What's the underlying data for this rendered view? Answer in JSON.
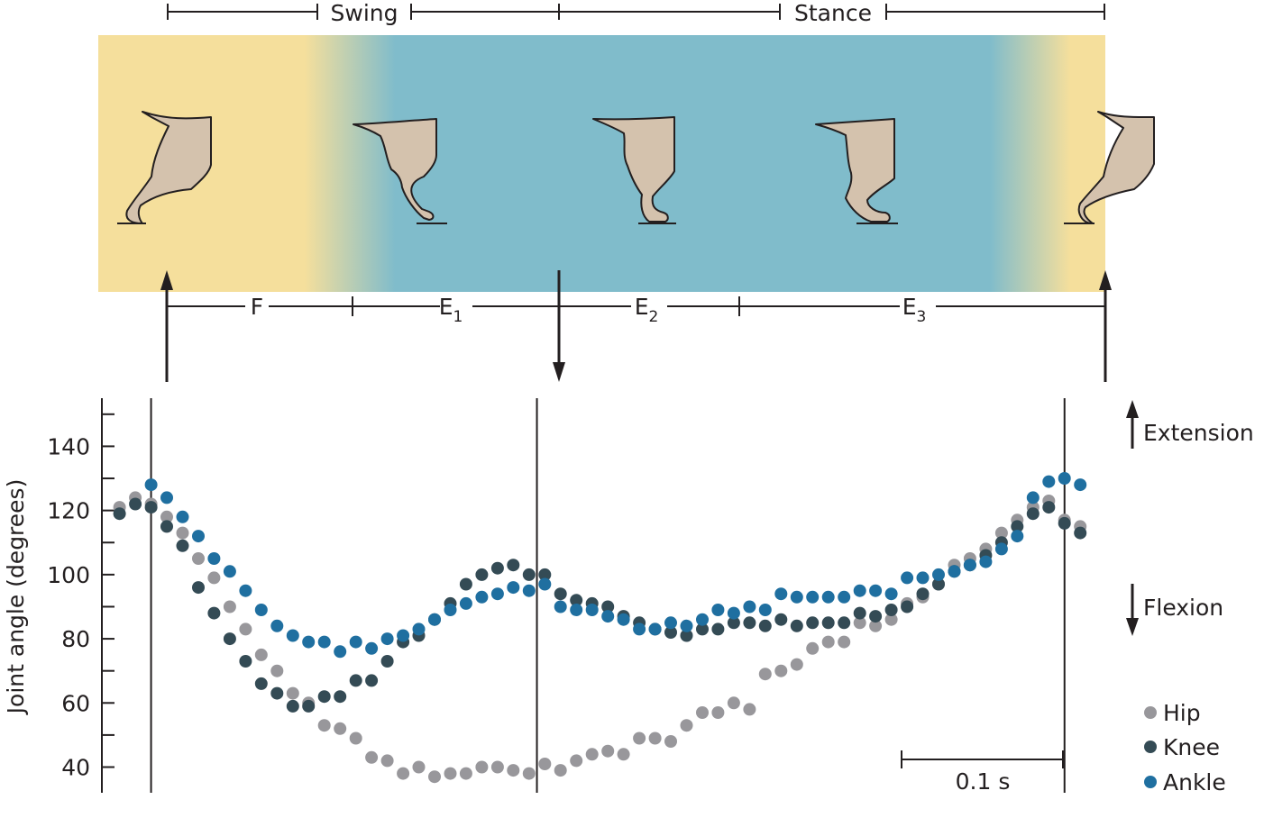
{
  "phase_header": {
    "swing_label": "Swing",
    "stance_label": "Stance"
  },
  "phase_segments": {
    "f_label": "F",
    "e1_label": "E",
    "e1_sub": "1",
    "e2_label": "E",
    "e2_sub": "2",
    "e3_label": "E",
    "e3_sub": "3"
  },
  "direction_labels": {
    "extension": "Extension",
    "flexion": "Flexion"
  },
  "scale_bar": {
    "label": "0.1 s"
  },
  "colors": {
    "swing_band": "#f5df9c",
    "stance_band": "#80bccb",
    "leg_fill": "#d4c2ad",
    "hip": "#98979b",
    "knee": "#344b55",
    "ankle": "#1f6fa0"
  },
  "chart_data": {
    "type": "scatter",
    "title": "",
    "xlabel": "",
    "ylabel": "Joint angle (degrees)",
    "ylim": [
      32,
      155
    ],
    "yticks": [
      40,
      60,
      80,
      100,
      120,
      140
    ],
    "x_unit": "s",
    "xlim": [
      -0.0215,
      0.6185
    ],
    "event_lines_s": [
      0.0,
      0.245,
      0.58
    ],
    "legend": {
      "placement": "bottom-right",
      "entries": [
        "Hip",
        "Knee",
        "Ankle"
      ]
    },
    "series": [
      {
        "name": "Hip",
        "color": "#98979b",
        "x": [
          -0.02,
          -0.01,
          0.0,
          0.01,
          0.02,
          0.03,
          0.04,
          0.05,
          0.06,
          0.07,
          0.08,
          0.09,
          0.1,
          0.11,
          0.12,
          0.13,
          0.14,
          0.15,
          0.16,
          0.17,
          0.18,
          0.19,
          0.2,
          0.21,
          0.22,
          0.23,
          0.24,
          0.25,
          0.26,
          0.27,
          0.28,
          0.29,
          0.3,
          0.31,
          0.32,
          0.33,
          0.34,
          0.35,
          0.36,
          0.37,
          0.38,
          0.39,
          0.4,
          0.41,
          0.42,
          0.43,
          0.44,
          0.45,
          0.46,
          0.47,
          0.48,
          0.49,
          0.5,
          0.51,
          0.52,
          0.53,
          0.54,
          0.55,
          0.56,
          0.57,
          0.58,
          0.59
        ],
        "y": [
          121,
          124,
          122,
          118,
          113,
          105,
          99,
          90,
          83,
          75,
          70,
          63,
          60,
          53,
          52,
          49,
          43,
          42,
          38,
          40,
          37,
          38,
          38,
          40,
          40,
          39,
          38,
          41,
          39,
          42,
          44,
          45,
          44,
          49,
          49,
          48,
          53,
          57,
          57,
          60,
          58,
          69,
          70,
          72,
          77,
          79,
          79,
          85,
          84,
          86,
          91,
          93,
          97,
          103,
          105,
          108,
          113,
          117,
          121,
          123,
          117,
          115
        ]
      },
      {
        "name": "Knee",
        "color": "#344b55",
        "x": [
          -0.02,
          -0.01,
          0.0,
          0.01,
          0.02,
          0.03,
          0.04,
          0.05,
          0.06,
          0.07,
          0.08,
          0.09,
          0.1,
          0.11,
          0.12,
          0.13,
          0.14,
          0.15,
          0.16,
          0.17,
          0.18,
          0.19,
          0.2,
          0.21,
          0.22,
          0.23,
          0.24,
          0.25,
          0.26,
          0.27,
          0.28,
          0.29,
          0.3,
          0.31,
          0.32,
          0.33,
          0.34,
          0.35,
          0.36,
          0.37,
          0.38,
          0.39,
          0.4,
          0.41,
          0.42,
          0.43,
          0.44,
          0.45,
          0.46,
          0.47,
          0.48,
          0.49,
          0.5,
          0.51,
          0.52,
          0.53,
          0.54,
          0.55,
          0.56,
          0.57,
          0.58,
          0.59
        ],
        "y": [
          119,
          122,
          121,
          115,
          109,
          96,
          88,
          80,
          73,
          66,
          63,
          59,
          59,
          62,
          62,
          67,
          67,
          73,
          79,
          81,
          86,
          91,
          97,
          100,
          102,
          103,
          100,
          100,
          94,
          92,
          91,
          90,
          87,
          85,
          83,
          82,
          81,
          83,
          83,
          85,
          85,
          84,
          86,
          84,
          85,
          85,
          85,
          88,
          87,
          89,
          90,
          94,
          97,
          101,
          103,
          106,
          110,
          115,
          119,
          121,
          116,
          113
        ]
      },
      {
        "name": "Ankle",
        "color": "#1f6fa0",
        "x": [
          0.0,
          0.01,
          0.02,
          0.03,
          0.04,
          0.05,
          0.06,
          0.07,
          0.08,
          0.09,
          0.1,
          0.11,
          0.12,
          0.13,
          0.14,
          0.15,
          0.16,
          0.17,
          0.18,
          0.19,
          0.2,
          0.21,
          0.22,
          0.23,
          0.24,
          0.25,
          0.26,
          0.27,
          0.28,
          0.29,
          0.3,
          0.31,
          0.32,
          0.33,
          0.34,
          0.35,
          0.36,
          0.37,
          0.38,
          0.39,
          0.4,
          0.41,
          0.42,
          0.43,
          0.44,
          0.45,
          0.46,
          0.47,
          0.48,
          0.49,
          0.5,
          0.51,
          0.52,
          0.53,
          0.54,
          0.55,
          0.56,
          0.57,
          0.58,
          0.59
        ],
        "y": [
          128,
          124,
          118,
          112,
          105,
          101,
          95,
          89,
          84,
          81,
          79,
          79,
          76,
          79,
          77,
          80,
          81,
          83,
          86,
          89,
          91,
          93,
          94,
          96,
          95,
          97,
          90,
          89,
          89,
          87,
          86,
          83,
          83,
          85,
          84,
          86,
          89,
          88,
          90,
          89,
          94,
          93,
          93,
          93,
          93,
          95,
          95,
          94,
          99,
          99,
          100,
          101,
          103,
          104,
          108,
          112,
          124,
          129,
          130,
          128
        ]
      }
    ]
  }
}
